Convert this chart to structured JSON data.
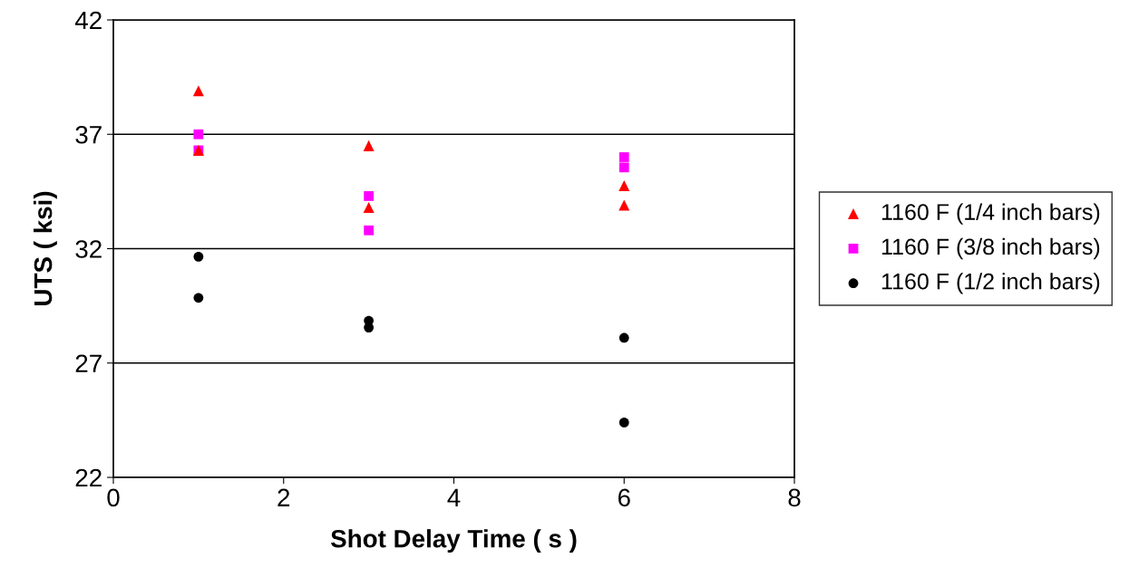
{
  "chart_data": {
    "type": "scatter",
    "xlabel": "Shot Delay Time ( s )",
    "ylabel": "UTS ( ksi)",
    "xlim": [
      0,
      8
    ],
    "xticks": [
      0,
      2,
      4,
      6,
      8
    ],
    "ylim": [
      22,
      42
    ],
    "yticks": [
      22,
      27,
      32,
      37,
      42
    ],
    "grid": "y",
    "legend": "right",
    "series": [
      {
        "name": "1160 F (1/4 inch bars)",
        "color": "#ff0000",
        "marker": "triangle",
        "x": [
          1,
          1,
          3,
          3,
          6,
          6
        ],
        "values": [
          38.9,
          36.3,
          36.5,
          33.8,
          34.75,
          33.9
        ]
      },
      {
        "name": "1160 F (3/8 inch bars)",
        "color": "#ff00ff",
        "marker": "square",
        "x": [
          1,
          1,
          3,
          3,
          6,
          6
        ],
        "values": [
          37.0,
          36.3,
          34.3,
          32.8,
          36.0,
          35.55
        ]
      },
      {
        "name": "1160 F (1/2 inch bars)",
        "color": "#000000",
        "marker": "circle",
        "x": [
          1,
          1,
          3,
          3,
          6,
          6
        ],
        "values": [
          31.65,
          29.85,
          28.85,
          28.55,
          28.1,
          24.4
        ]
      }
    ]
  }
}
